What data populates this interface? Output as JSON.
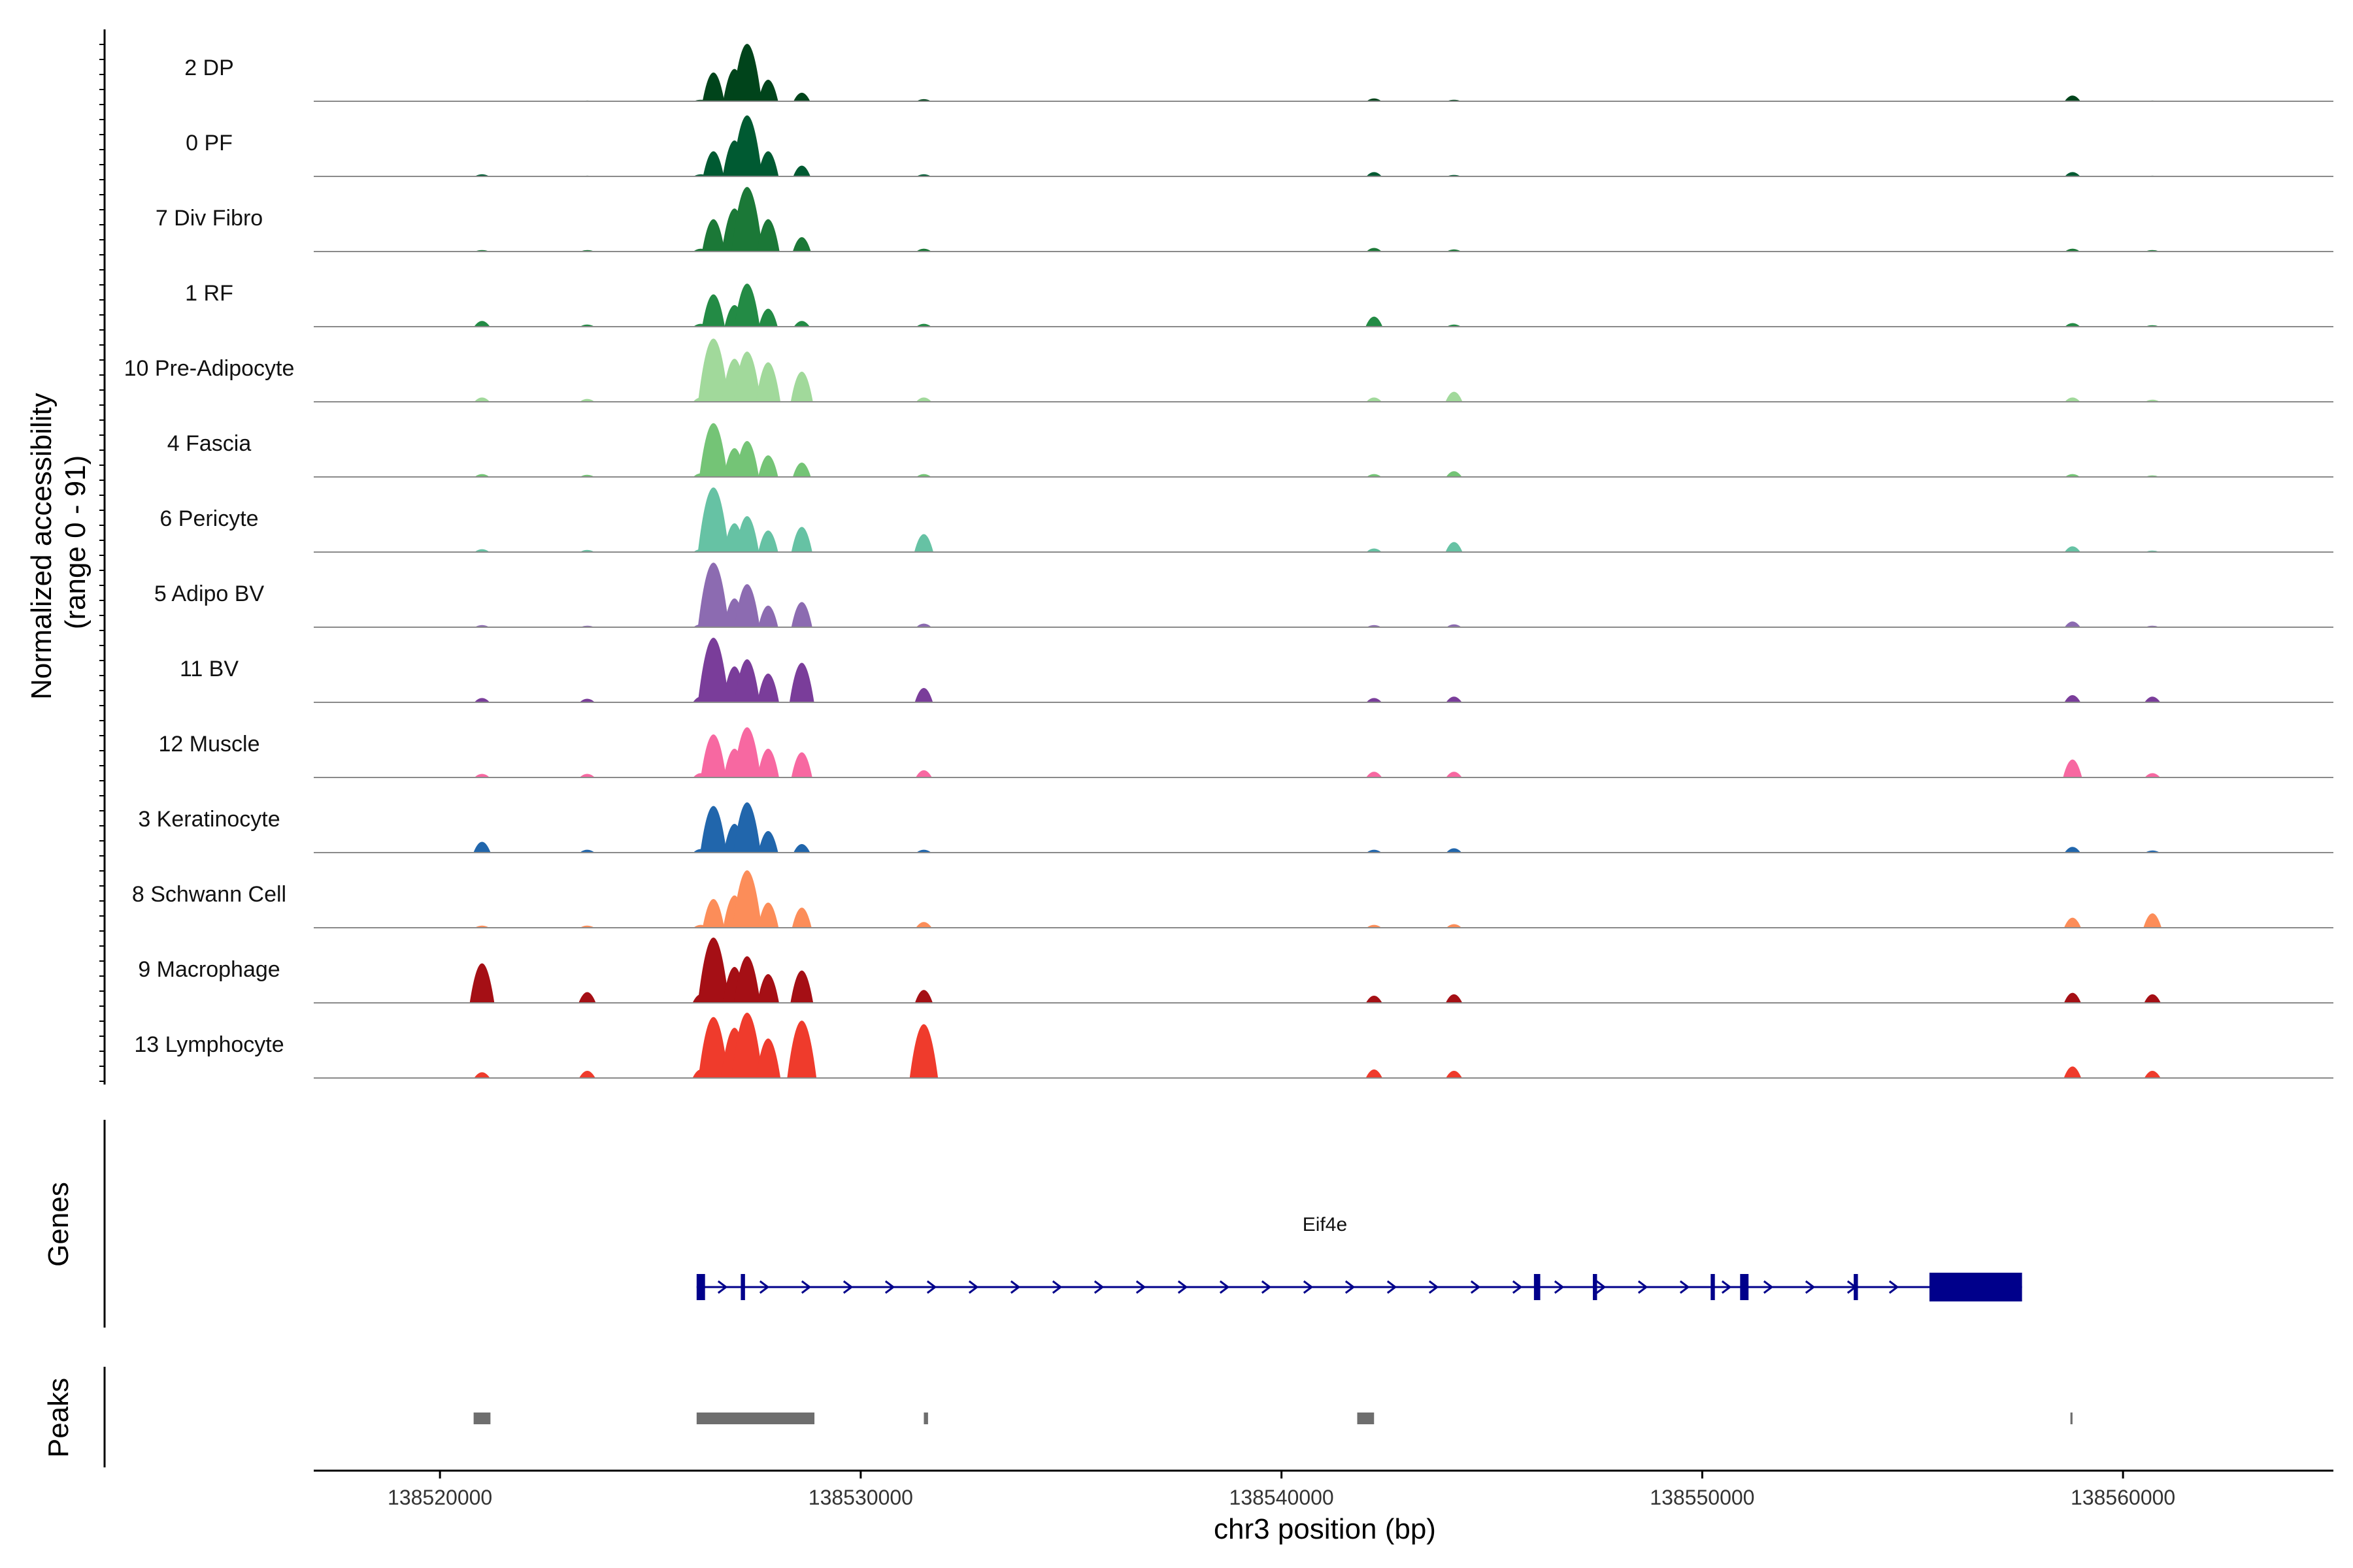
{
  "chart_data": {
    "type": "area",
    "title": "",
    "xlabel": "chr3 position (bp)",
    "ylabel": "Normalized accessibility\n(range 0 - 91)",
    "ylabel_lines": [
      "Normalized accessibility",
      "(range 0 - 91)"
    ],
    "ylim": [
      0,
      91
    ],
    "xlim": [
      138517000,
      138565000
    ],
    "x_ticks": [
      138520000,
      138530000,
      138540000,
      138550000,
      138560000
    ],
    "x_tick_labels": [
      "138520000",
      "138530000",
      "138540000",
      "138550000",
      "138560000"
    ],
    "peak_centers": [
      138521000,
      138523500,
      138526200,
      138526500,
      138527000,
      138527300,
      138527800,
      138528600,
      138531500,
      138542200,
      138544100,
      138558800,
      138560700
    ],
    "series": [
      {
        "name": "2 DP",
        "color": "#00441b",
        "values": [
          0,
          1,
          2,
          40,
          45,
          80,
          30,
          12,
          3,
          4,
          2,
          8,
          1
        ]
      },
      {
        "name": "0 PF",
        "color": "#005a32",
        "values": [
          3,
          1,
          3,
          35,
          50,
          85,
          35,
          15,
          3,
          6,
          2,
          6,
          1
        ]
      },
      {
        "name": "7 Div Fibro",
        "color": "#1b7837",
        "values": [
          2,
          2,
          4,
          45,
          60,
          90,
          45,
          20,
          4,
          5,
          3,
          4,
          2
        ]
      },
      {
        "name": "1 RF",
        "color": "#238b45",
        "values": [
          8,
          3,
          4,
          45,
          30,
          60,
          25,
          8,
          4,
          14,
          3,
          5,
          2
        ]
      },
      {
        "name": "10 Pre-Adipocyte",
        "color": "#a1d99b",
        "values": [
          6,
          4,
          6,
          88,
          60,
          70,
          55,
          42,
          6,
          6,
          14,
          6,
          3
        ]
      },
      {
        "name": "4 Fascia",
        "color": "#74c476",
        "values": [
          4,
          3,
          5,
          75,
          40,
          50,
          30,
          20,
          4,
          4,
          8,
          4,
          2
        ]
      },
      {
        "name": "6 Pericyte",
        "color": "#66c2a4",
        "values": [
          4,
          3,
          4,
          90,
          40,
          50,
          30,
          35,
          25,
          5,
          14,
          8,
          2
        ]
      },
      {
        "name": "5 Adipo BV",
        "color": "#8c6bb1",
        "values": [
          3,
          2,
          4,
          90,
          40,
          60,
          30,
          35,
          5,
          3,
          4,
          8,
          2
        ]
      },
      {
        "name": "11 BV",
        "color": "#7a3d9a",
        "values": [
          6,
          5,
          8,
          90,
          50,
          60,
          40,
          55,
          20,
          6,
          8,
          10,
          8
        ]
      },
      {
        "name": "12 Muscle",
        "color": "#f768a1",
        "values": [
          5,
          5,
          6,
          60,
          40,
          70,
          40,
          35,
          10,
          8,
          8,
          25,
          6
        ]
      },
      {
        "name": "3 Keratinocyte",
        "color": "#2166ac",
        "values": [
          15,
          4,
          5,
          65,
          40,
          70,
          30,
          12,
          4,
          4,
          6,
          8,
          3
        ]
      },
      {
        "name": "8 Schwann Cell",
        "color": "#fc8d59",
        "values": [
          3,
          3,
          4,
          40,
          45,
          80,
          35,
          28,
          8,
          4,
          5,
          14,
          20
        ]
      },
      {
        "name": "9 Macrophage",
        "color": "#a50f15",
        "values": [
          55,
          15,
          12,
          91,
          50,
          65,
          40,
          45,
          18,
          10,
          12,
          14,
          12
        ]
      },
      {
        "name": "13 Lymphocyte",
        "color": "#ef3b2c",
        "values": [
          8,
          10,
          12,
          85,
          70,
          91,
          55,
          80,
          75,
          12,
          10,
          16,
          10
        ]
      }
    ],
    "genes": {
      "label": "Genes",
      "name": "Eif4e",
      "strand": "+",
      "start": 138526100,
      "end": 138557600,
      "exons": [
        [
          138526100,
          138526300
        ],
        [
          138527150,
          138527250
        ],
        [
          138546000,
          138546150
        ],
        [
          138547400,
          138547500
        ],
        [
          138550200,
          138550300
        ],
        [
          138550900,
          138551100
        ],
        [
          138553600,
          138553700
        ],
        [
          138555400,
          138557600
        ]
      ]
    },
    "peaks": {
      "label": "Peaks",
      "regions": [
        [
          138520800,
          138521200
        ],
        [
          138526100,
          138528900
        ],
        [
          138531500,
          138531600
        ],
        [
          138541800,
          138542200
        ],
        [
          138558750,
          138558800
        ]
      ]
    }
  }
}
